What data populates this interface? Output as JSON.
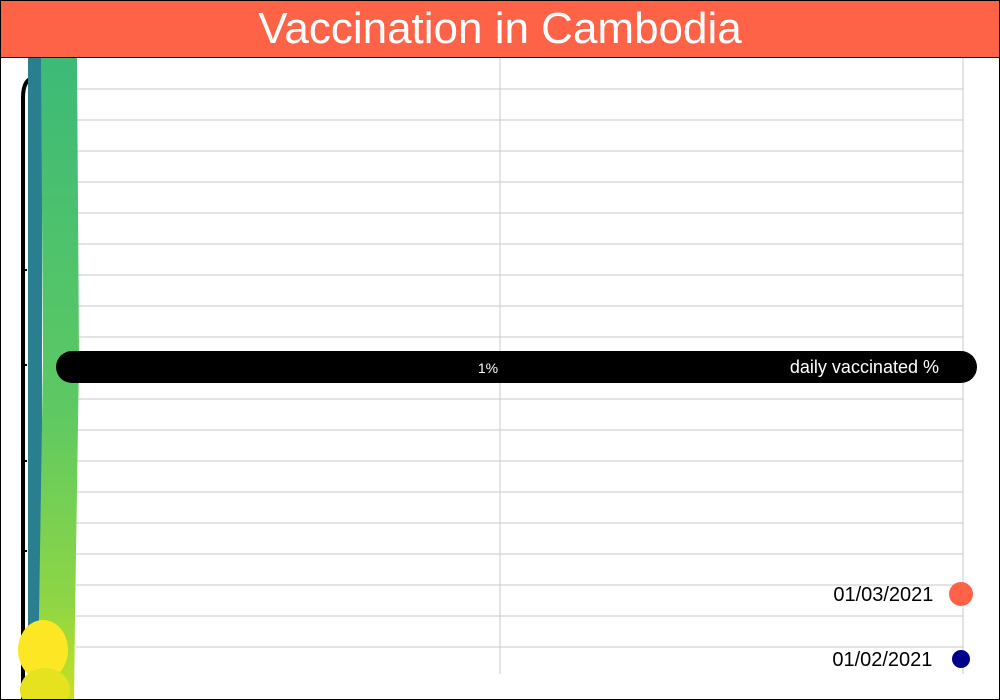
{
  "title": "Vaccination in Cambodia",
  "colors": {
    "title_bg": "#ff6347",
    "title_text": "#ffffff",
    "grid": "#c8c8c8",
    "left_stripe": "#2a7f8f",
    "series_gradient_top": "#3dba78",
    "series_gradient_bottom": "#fde725",
    "bar": "#000000"
  },
  "chart_data": {
    "type": "bar",
    "orientation": "horizontal",
    "title": "Vaccination in Cambodia",
    "x_ticks": [
      "1%"
    ],
    "bar": {
      "label": "daily vaccinated %",
      "tick_label": "1%",
      "value": 2
    },
    "dates": [
      "01/03/2021",
      "01/02/2021"
    ],
    "legend": [
      {
        "label": "01/03/2021",
        "color": "#ff6347",
        "marker": "large-dot"
      },
      {
        "label": "01/02/2021",
        "color": "#00008b",
        "marker": "small-dot"
      }
    ],
    "legend_placement": "bottom-right",
    "grid": true
  }
}
